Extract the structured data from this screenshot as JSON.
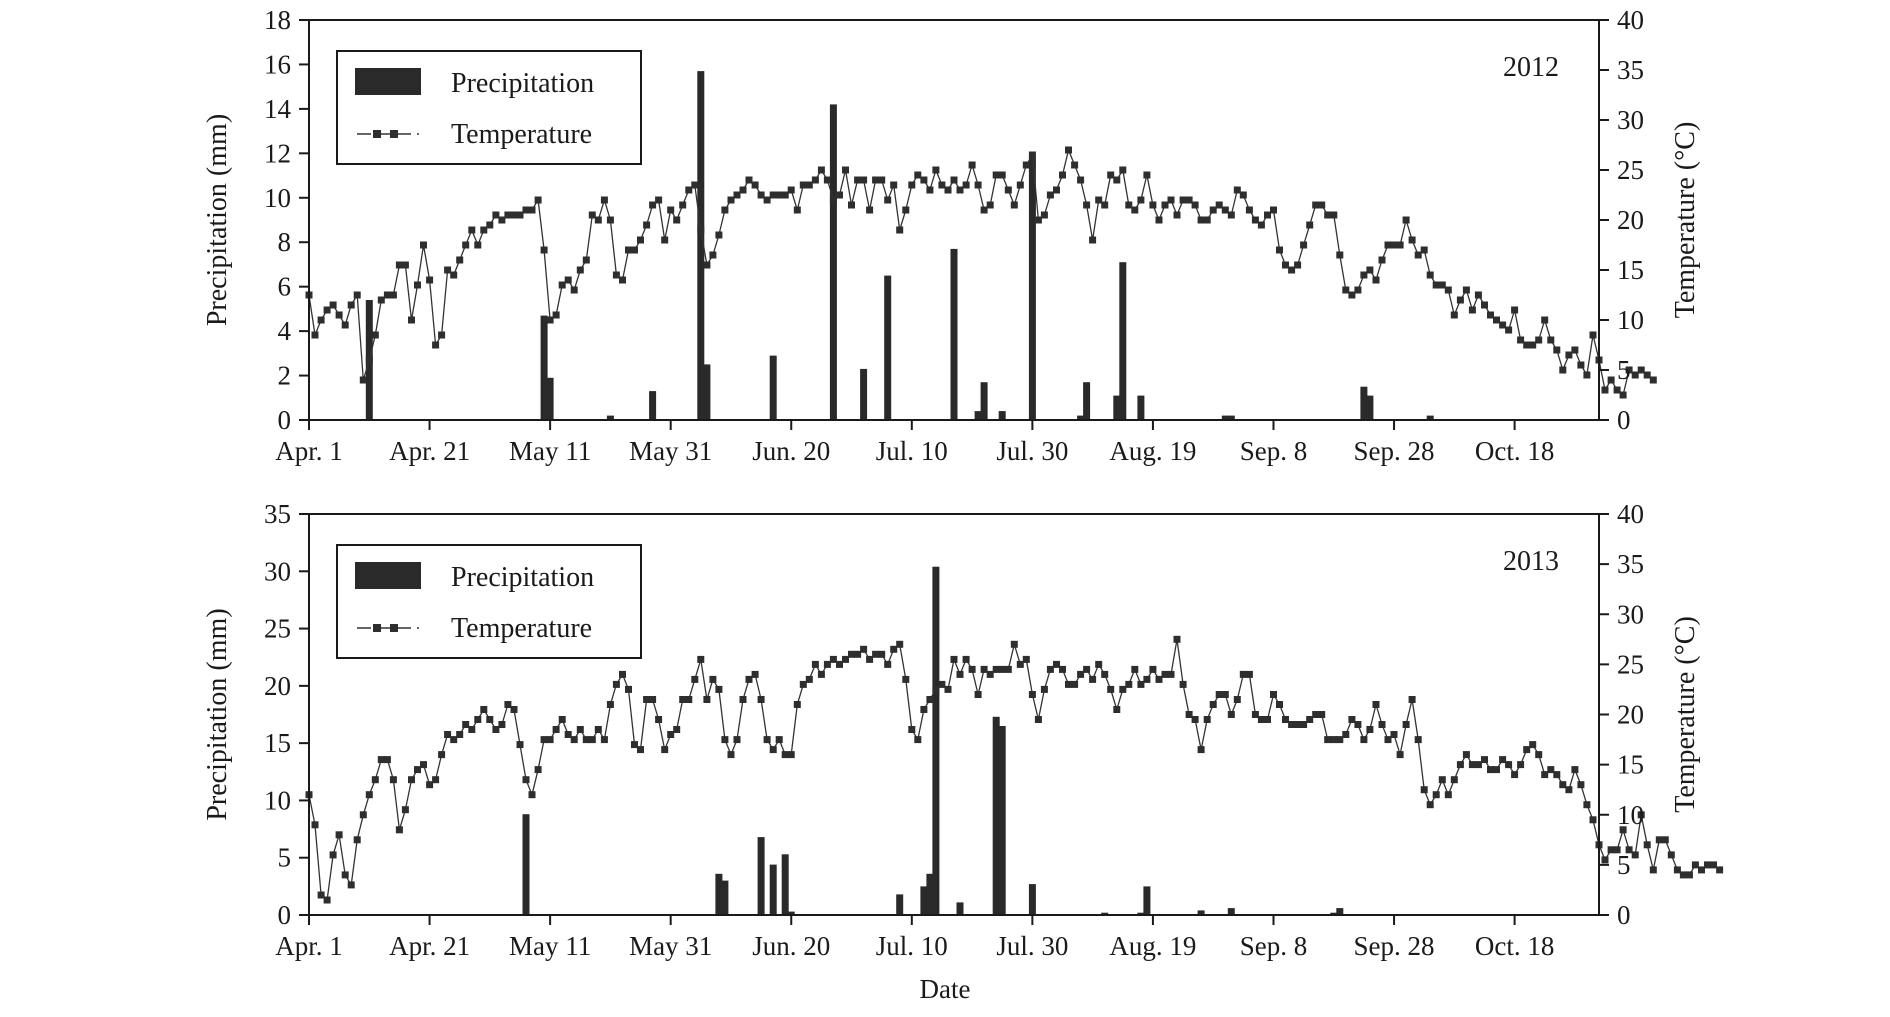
{
  "figure": {
    "xlabel": "Date"
  },
  "chart_data": [
    {
      "type": "bar",
      "panel_label": "2012",
      "title": "",
      "xlabel": "",
      "ylabel": "Precipitation (mm)",
      "y2label": "Temperature (°C)",
      "x_ticks": [
        "Apr. 1",
        "Apr. 21",
        "May 11",
        "May 31",
        "Jun. 20",
        "Jul. 10",
        "Jul. 30",
        "Aug. 19",
        "Sep. 8",
        "Sep. 28",
        "Oct. 18"
      ],
      "x_tick_day_offsets": [
        0,
        20,
        40,
        60,
        80,
        100,
        120,
        140,
        160,
        180,
        200
      ],
      "x_range_days": [
        0,
        214
      ],
      "ylim": [
        0,
        18
      ],
      "yticks": [
        0,
        2,
        4,
        6,
        8,
        10,
        12,
        14,
        16,
        18
      ],
      "y2lim": [
        0,
        40
      ],
      "y2ticks": [
        0,
        5,
        10,
        15,
        20,
        25,
        30,
        35,
        40
      ],
      "legend": {
        "position": "top-left",
        "entries": [
          "Precipitation",
          "Temperature"
        ]
      },
      "grid": false,
      "series": [
        {
          "name": "Precipitation",
          "type": "bar",
          "axis": "left",
          "points": [
            [
              10,
              5.4
            ],
            [
              39,
              4.7
            ],
            [
              40,
              1.9
            ],
            [
              50,
              0.2
            ],
            [
              57,
              1.3
            ],
            [
              65,
              15.7
            ],
            [
              66,
              2.5
            ],
            [
              77,
              2.9
            ],
            [
              87,
              14.2
            ],
            [
              92,
              2.3
            ],
            [
              96,
              6.5
            ],
            [
              107,
              7.7
            ],
            [
              111,
              0.4
            ],
            [
              112,
              1.7
            ],
            [
              115,
              0.4
            ],
            [
              120,
              11.8
            ],
            [
              128,
              0.2
            ],
            [
              129,
              1.7
            ],
            [
              134,
              1.1
            ],
            [
              135,
              7.1
            ],
            [
              138,
              1.1
            ],
            [
              152,
              0.2
            ],
            [
              153,
              0.2
            ],
            [
              175,
              1.5
            ],
            [
              176,
              1.1
            ],
            [
              186,
              0.2
            ]
          ]
        },
        {
          "name": "Temperature",
          "type": "line",
          "axis": "right",
          "values": [
            12.5,
            8.5,
            10.0,
            11.0,
            11.5,
            10.5,
            9.5,
            11.5,
            12.5,
            4.0,
            6.0,
            8.5,
            12.0,
            12.5,
            12.5,
            15.5,
            15.5,
            10.0,
            13.5,
            17.5,
            14.0,
            7.5,
            8.5,
            15.0,
            14.5,
            16.0,
            17.5,
            19.0,
            17.5,
            19.0,
            19.5,
            20.5,
            20.0,
            20.5,
            20.5,
            20.5,
            21.0,
            21.0,
            22.0,
            17.0,
            10.0,
            10.5,
            13.5,
            14.0,
            13.0,
            15.0,
            16.0,
            20.5,
            20.0,
            22.0,
            20.0,
            14.5,
            14.0,
            17.0,
            17.0,
            18.0,
            19.5,
            21.5,
            22.0,
            18.0,
            21.0,
            20.0,
            21.5,
            23.0,
            23.5,
            19.0,
            15.5,
            16.5,
            18.5,
            21.0,
            22.0,
            22.5,
            23.0,
            24.0,
            23.5,
            22.5,
            22.0,
            22.5,
            22.5,
            22.5,
            23.0,
            21.0,
            23.5,
            23.5,
            24.0,
            25.0,
            24.0,
            22.0,
            22.5,
            25.0,
            21.5,
            24.0,
            24.0,
            21.0,
            24.0,
            24.0,
            22.0,
            23.5,
            19.0,
            21.0,
            23.5,
            24.5,
            24.0,
            23.0,
            25.0,
            23.5,
            23.0,
            24.0,
            23.0,
            23.5,
            25.5,
            23.5,
            21.0,
            21.5,
            24.5,
            24.5,
            23.0,
            21.5,
            23.5,
            25.5,
            26.5,
            20.0,
            20.5,
            22.5,
            23.0,
            24.5,
            27.0,
            25.5,
            24.0,
            21.5,
            18.0,
            22.0,
            21.5,
            24.5,
            24.0,
            25.0,
            21.5,
            21.0,
            22.0,
            24.5,
            21.5,
            20.0,
            21.5,
            22.0,
            20.5,
            22.0,
            22.0,
            21.5,
            20.0,
            20.0,
            21.0,
            21.5,
            21.0,
            20.5,
            23.0,
            22.5,
            21.0,
            20.0,
            19.5,
            20.5,
            21.0,
            17.0,
            15.5,
            15.0,
            15.5,
            17.5,
            19.5,
            21.5,
            21.5,
            20.5,
            20.5,
            16.5,
            13.0,
            12.5,
            13.0,
            14.5,
            15.0,
            14.0,
            16.0,
            17.5,
            17.5,
            17.5,
            20.0,
            18.0,
            16.5,
            17.0,
            14.5,
            13.5,
            13.5,
            13.0,
            10.5,
            12.0,
            13.0,
            11.0,
            12.5,
            11.5,
            10.5,
            10.0,
            9.5,
            9.0,
            11.0,
            8.0,
            7.5,
            7.5,
            8.0,
            10.0,
            8.0,
            7.0,
            5.0,
            6.5,
            7.0,
            5.5,
            4.5,
            8.5,
            6.0,
            3.0,
            4.0,
            3.0,
            2.5,
            5.0,
            4.5,
            5.0,
            4.5,
            4.0
          ]
        }
      ]
    },
    {
      "type": "bar",
      "panel_label": "2013",
      "title": "",
      "xlabel": "Date",
      "ylabel": "Precipitation (mm)",
      "y2label": "Temperature (°C)",
      "x_ticks": [
        "Apr. 1",
        "Apr. 21",
        "May 11",
        "May 31",
        "Jun. 20",
        "Jul. 10",
        "Jul. 30",
        "Aug. 19",
        "Sep. 8",
        "Sep. 28",
        "Oct. 18"
      ],
      "x_tick_day_offsets": [
        0,
        20,
        40,
        60,
        80,
        100,
        120,
        140,
        160,
        180,
        200
      ],
      "x_range_days": [
        0,
        214
      ],
      "ylim": [
        0,
        35
      ],
      "yticks": [
        0,
        5,
        10,
        15,
        20,
        25,
        30,
        35
      ],
      "y2lim": [
        0,
        40
      ],
      "y2ticks": [
        0,
        5,
        10,
        15,
        20,
        25,
        30,
        35,
        40
      ],
      "legend": {
        "position": "top-left",
        "entries": [
          "Precipitation",
          "Temperature"
        ]
      },
      "grid": false,
      "series": [
        {
          "name": "Precipitation",
          "type": "bar",
          "axis": "left",
          "points": [
            [
              36,
              8.8
            ],
            [
              68,
              3.6
            ],
            [
              69,
              3.0
            ],
            [
              75,
              6.8
            ],
            [
              77,
              4.4
            ],
            [
              79,
              5.3
            ],
            [
              80,
              0.3
            ],
            [
              98,
              1.8
            ],
            [
              102,
              2.5
            ],
            [
              103,
              3.6
            ],
            [
              104,
              30.4
            ],
            [
              108,
              1.1
            ],
            [
              114,
              17.3
            ],
            [
              115,
              16.5
            ],
            [
              120,
              2.7
            ],
            [
              132,
              0.2
            ],
            [
              138,
              0.2
            ],
            [
              139,
              2.5
            ],
            [
              148,
              0.4
            ],
            [
              153,
              0.6
            ],
            [
              170,
              0.2
            ],
            [
              171,
              0.6
            ]
          ]
        },
        {
          "name": "Temperature",
          "type": "line",
          "axis": "right",
          "values": [
            12.0,
            9.0,
            2.0,
            1.5,
            6.0,
            8.0,
            4.0,
            3.0,
            7.5,
            10.0,
            12.0,
            13.5,
            15.5,
            15.5,
            13.5,
            8.5,
            10.5,
            13.5,
            14.5,
            15.0,
            13.0,
            13.5,
            16.0,
            18.0,
            17.5,
            18.0,
            19.0,
            18.5,
            19.5,
            20.5,
            19.5,
            18.5,
            19.0,
            21.0,
            20.5,
            17.0,
            13.5,
            12.0,
            14.5,
            17.5,
            17.5,
            18.5,
            19.5,
            18.0,
            17.5,
            18.5,
            17.5,
            17.5,
            18.5,
            17.5,
            21.0,
            23.0,
            24.0,
            22.5,
            17.0,
            16.5,
            21.5,
            21.5,
            19.5,
            16.5,
            18.0,
            18.5,
            21.5,
            21.5,
            23.5,
            25.5,
            21.5,
            23.5,
            22.5,
            17.5,
            16.0,
            17.5,
            21.5,
            23.5,
            24.0,
            21.5,
            17.5,
            16.5,
            17.5,
            16.0,
            16.0,
            21.0,
            23.0,
            23.5,
            25.0,
            24.0,
            25.0,
            25.5,
            25.0,
            25.5,
            26.0,
            26.0,
            26.5,
            25.5,
            26.0,
            26.0,
            25.0,
            26.5,
            27.0,
            23.5,
            18.5,
            17.5,
            20.5,
            21.5,
            22.5,
            23.0,
            22.5,
            25.5,
            24.0,
            25.5,
            24.5,
            22.0,
            24.5,
            24.0,
            24.5,
            24.5,
            24.5,
            27.0,
            25.0,
            25.5,
            22.0,
            19.5,
            22.5,
            24.5,
            25.0,
            24.5,
            23.0,
            23.0,
            24.0,
            24.5,
            23.5,
            25.0,
            24.0,
            22.5,
            20.5,
            22.5,
            23.0,
            24.5,
            23.0,
            23.5,
            24.5,
            23.5,
            24.0,
            24.0,
            27.5,
            23.0,
            20.0,
            19.5,
            16.5,
            19.5,
            21.0,
            22.0,
            22.0,
            20.0,
            21.5,
            24.0,
            24.0,
            20.0,
            19.5,
            19.5,
            22.0,
            21.0,
            19.5,
            19.0,
            19.0,
            19.0,
            19.5,
            20.0,
            20.0,
            17.5,
            17.5,
            17.5,
            18.0,
            19.5,
            19.0,
            17.5,
            18.5,
            21.0,
            19.0,
            17.5,
            18.0,
            16.0,
            19.0,
            21.5,
            17.5,
            12.5,
            11.0,
            12.0,
            13.5,
            12.0,
            13.5,
            15.0,
            16.0,
            15.0,
            15.0,
            15.5,
            14.5,
            14.5,
            15.5,
            15.0,
            14.0,
            15.0,
            16.5,
            17.0,
            16.0,
            14.0,
            14.5,
            14.0,
            13.0,
            12.5,
            14.5,
            13.0,
            11.0,
            9.5,
            7.0,
            5.5,
            6.5,
            6.5,
            8.5,
            6.5,
            6.0,
            10.0,
            7.0,
            4.5,
            7.5,
            7.5,
            6.0,
            4.5,
            4.0,
            4.0,
            5.0,
            4.5,
            5.0,
            5.0,
            4.5
          ]
        }
      ]
    }
  ]
}
